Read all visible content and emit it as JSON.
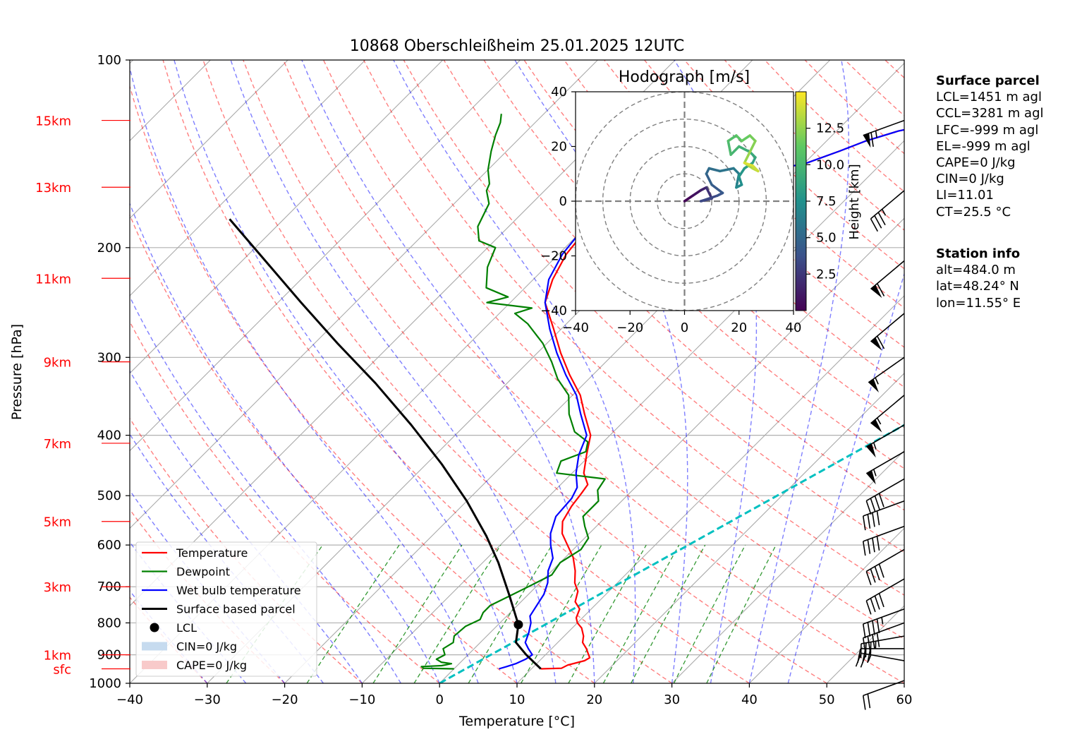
{
  "title": "10868 Oberschleißheim 25.01.2025 12UTC",
  "chart_data": {
    "type": "skew-t",
    "xlabel": "Temperature [°C]",
    "ylabel": "Pressure [hPa]",
    "xlim": [
      -40,
      60
    ],
    "ylim": [
      1000,
      100
    ],
    "x_ticks": [
      "−40",
      "−30",
      "−20",
      "−10",
      "0",
      "10",
      "20",
      "30",
      "40",
      "50",
      "60"
    ],
    "y_ticks": [
      "100",
      "200",
      "300",
      "400",
      "500",
      "600",
      "700",
      "800",
      "900",
      "1000"
    ],
    "height_labels": [
      {
        "label": "15km",
        "p": 125
      },
      {
        "label": "13km",
        "p": 160
      },
      {
        "label": "11km",
        "p": 224
      },
      {
        "label": "9km",
        "p": 305
      },
      {
        "label": "7km",
        "p": 412
      },
      {
        "label": "5km",
        "p": 550
      },
      {
        "label": "3km",
        "p": 700
      },
      {
        "label": "1km",
        "p": 900
      },
      {
        "label": "sfc",
        "p": 948
      }
    ],
    "legend": {
      "placement": "lower-left",
      "entries": [
        {
          "label": "Temperature",
          "color": "#ff0000",
          "kind": "line"
        },
        {
          "label": "Dewpoint",
          "color": "#008000",
          "kind": "line"
        },
        {
          "label": "Wet bulb temperature",
          "color": "#0000ff",
          "kind": "line"
        },
        {
          "label": "Surface based parcel",
          "color": "#000000",
          "kind": "line"
        },
        {
          "label": "LCL",
          "color": "#000000",
          "kind": "dot"
        },
        {
          "label": "CIN=0 J/kg",
          "color": "#c6dbef",
          "kind": "patch"
        },
        {
          "label": "CAPE=0 J/kg",
          "color": "#f8caca",
          "kind": "patch"
        }
      ]
    },
    "series": [
      {
        "name": "Temperature",
        "color": "#ff0000",
        "points": [
          [
            11.2,
            948
          ],
          [
            13.8,
            946
          ],
          [
            14.2,
            935
          ],
          [
            15.8,
            920
          ],
          [
            16.1,
            910
          ],
          [
            15.3,
            895
          ],
          [
            14.5,
            880
          ],
          [
            13.2,
            860
          ],
          [
            12.5,
            840
          ],
          [
            11.2,
            815
          ],
          [
            10.0,
            800
          ],
          [
            9.2,
            785
          ],
          [
            8.5,
            760
          ],
          [
            7.0,
            740
          ],
          [
            6.0,
            712
          ],
          [
            4.5,
            690
          ],
          [
            3.0,
            660
          ],
          [
            1.0,
            628
          ],
          [
            -1.5,
            598
          ],
          [
            -3.5,
            575
          ],
          [
            -5.0,
            550
          ],
          [
            -5.8,
            520
          ],
          [
            -6.2,
            495
          ],
          [
            -6.5,
            480
          ],
          [
            -8.5,
            460
          ],
          [
            -10.5,
            430
          ],
          [
            -12.5,
            400
          ],
          [
            -16.0,
            370
          ],
          [
            -19.0,
            345
          ],
          [
            -23.0,
            320
          ],
          [
            -27.0,
            295
          ],
          [
            -31.0,
            270
          ],
          [
            -35.5,
            245
          ],
          [
            -37.5,
            225
          ],
          [
            -39.0,
            205
          ],
          [
            -39.5,
            190
          ],
          [
            -39.0,
            182
          ],
          [
            -38.5,
            178
          ],
          [
            -36.0,
            172
          ],
          [
            -33.0,
            168
          ],
          [
            -30.5,
            160
          ],
          [
            -26.5,
            155
          ],
          [
            -24.0,
            150
          ],
          [
            -20.0,
            147
          ],
          [
            -17.0,
            140
          ],
          [
            -15.0,
            135
          ],
          [
            -12.0,
            130
          ],
          [
            -9.0,
            127
          ],
          [
            -7.0,
            124
          ],
          [
            -6.0,
            121
          ]
        ]
      },
      {
        "name": "Dewpoint",
        "color": "#008000",
        "points": [
          [
            0.0,
            948
          ],
          [
            -4.0,
            946
          ],
          [
            -4.5,
            940
          ],
          [
            -2.0,
            937
          ],
          [
            -1.0,
            930
          ],
          [
            -2.5,
            925
          ],
          [
            -3.5,
            915
          ],
          [
            -3.0,
            900
          ],
          [
            -4.0,
            880
          ],
          [
            -3.5,
            860
          ],
          [
            -4.2,
            840
          ],
          [
            -4.0,
            810
          ],
          [
            -3.0,
            790
          ],
          [
            -3.5,
            770
          ],
          [
            -3.5,
            750
          ],
          [
            -2.0,
            720
          ],
          [
            -1.0,
            700
          ],
          [
            0.5,
            670
          ],
          [
            0.0,
            640
          ],
          [
            1.0,
            610
          ],
          [
            0.5,
            585
          ],
          [
            -1.5,
            560
          ],
          [
            -3.0,
            540
          ],
          [
            -3.0,
            510
          ],
          [
            -4.5,
            490
          ],
          [
            -5.0,
            470
          ],
          [
            -12.0,
            460
          ],
          [
            -13.0,
            440
          ],
          [
            -11.0,
            425
          ],
          [
            -12.0,
            410
          ],
          [
            -15.0,
            395
          ],
          [
            -18.0,
            370
          ],
          [
            -20.5,
            345
          ],
          [
            -24.0,
            325
          ],
          [
            -27.0,
            305
          ],
          [
            -30.5,
            285
          ],
          [
            -35.0,
            265
          ],
          [
            -38.0,
            255
          ],
          [
            -36.5,
            250
          ],
          [
            -43.0,
            245
          ],
          [
            -41.0,
            240
          ],
          [
            -45.0,
            232
          ],
          [
            -46.0,
            225
          ],
          [
            -47.5,
            215
          ],
          [
            -49.0,
            200
          ],
          [
            -52.0,
            195
          ],
          [
            -54.0,
            185
          ],
          [
            -55.5,
            170
          ],
          [
            -57.5,
            162
          ],
          [
            -58.0,
            158
          ],
          [
            -60.0,
            150
          ],
          [
            -62.0,
            140
          ],
          [
            -63.5,
            132
          ],
          [
            -64.5,
            126
          ],
          [
            -65.5,
            122
          ]
        ]
      },
      {
        "name": "Wet bulb temperature",
        "color": "#0000ff",
        "points": [
          [
            5.8,
            948
          ],
          [
            6.5,
            940
          ],
          [
            7.3,
            930
          ],
          [
            8.0,
            915
          ],
          [
            8.3,
            900
          ],
          [
            7.0,
            880
          ],
          [
            5.8,
            860
          ],
          [
            5.0,
            830
          ],
          [
            4.0,
            800
          ],
          [
            3.0,
            780
          ],
          [
            2.5,
            750
          ],
          [
            2.0,
            720
          ],
          [
            1.0,
            690
          ],
          [
            -0.5,
            660
          ],
          [
            -1.5,
            630
          ],
          [
            -3.5,
            600
          ],
          [
            -5.0,
            575
          ],
          [
            -6.5,
            540
          ],
          [
            -6.8,
            505
          ],
          [
            -7.5,
            485
          ],
          [
            -9.5,
            460
          ],
          [
            -11.5,
            430
          ],
          [
            -13.0,
            400
          ],
          [
            -16.5,
            370
          ],
          [
            -19.5,
            345
          ],
          [
            -23.5,
            320
          ],
          [
            -27.5,
            295
          ],
          [
            -31.5,
            270
          ],
          [
            -35.5,
            245
          ],
          [
            -38.0,
            225
          ],
          [
            -39.5,
            205
          ],
          [
            -40.0,
            190
          ],
          [
            -39.5,
            182
          ],
          [
            -38.5,
            178
          ],
          [
            -36.0,
            172
          ],
          [
            -33.0,
            168
          ],
          [
            -30.5,
            160
          ],
          [
            -26.5,
            155
          ],
          [
            -24.0,
            150
          ],
          [
            -20.0,
            147
          ],
          [
            -17.0,
            140
          ],
          [
            -15.0,
            135
          ],
          [
            -12.0,
            130
          ],
          [
            -9.0,
            127
          ],
          [
            -7.0,
            124
          ],
          [
            -6.0,
            121
          ]
        ]
      },
      {
        "name": "Surface based parcel",
        "color": "#000000",
        "points": [
          [
            11.2,
            948
          ],
          [
            7.5,
            900
          ],
          [
            4.6,
            860
          ],
          [
            2.6,
            805
          ],
          [
            -2.5,
            720
          ],
          [
            -8.0,
            640
          ],
          [
            -13.0,
            580
          ],
          [
            -20.0,
            510
          ],
          [
            -28.0,
            445
          ],
          [
            -37.0,
            385
          ],
          [
            -47.0,
            330
          ],
          [
            -57.0,
            285
          ],
          [
            -67.0,
            245
          ],
          [
            -77.0,
            210
          ],
          [
            -87.0,
            180
          ]
        ]
      }
    ],
    "lcl": {
      "t": 2.6,
      "p": 805
    },
    "cyan_line": {
      "color": "#00c0c0",
      "points": [
        [
          0,
          1000
        ],
        [
          54,
          145
        ]
      ]
    },
    "wind_profile": {
      "color": "#000000",
      "barbs": [
        {
          "p": 990,
          "speed_kt": 20,
          "dir": 250
        },
        {
          "p": 920,
          "speed_kt": 25,
          "dir": 280
        },
        {
          "p": 880,
          "speed_kt": 30,
          "dir": 270
        },
        {
          "p": 840,
          "speed_kt": 35,
          "dir": 260
        },
        {
          "p": 800,
          "speed_kt": 40,
          "dir": 250
        },
        {
          "p": 760,
          "speed_kt": 45,
          "dir": 250
        },
        {
          "p": 680,
          "speed_kt": 40,
          "dir": 240
        },
        {
          "p": 610,
          "speed_kt": 40,
          "dir": 240
        },
        {
          "p": 560,
          "speed_kt": 40,
          "dir": 250
        },
        {
          "p": 510,
          "speed_kt": 40,
          "dir": 250
        },
        {
          "p": 470,
          "speed_kt": 40,
          "dir": 240
        },
        {
          "p": 425,
          "speed_kt": 55,
          "dir": 240
        },
        {
          "p": 385,
          "speed_kt": 55,
          "dir": 240
        },
        {
          "p": 345,
          "speed_kt": 55,
          "dir": 230
        },
        {
          "p": 300,
          "speed_kt": 55,
          "dir": 235
        },
        {
          "p": 255,
          "speed_kt": 60,
          "dir": 230
        },
        {
          "p": 210,
          "speed_kt": 60,
          "dir": 230
        },
        {
          "p": 162,
          "speed_kt": 35,
          "dir": 230
        },
        {
          "p": 125,
          "speed_kt": 65,
          "dir": 250
        }
      ]
    },
    "hodograph": {
      "title": "Hodograph [m/s]",
      "xlim": [
        -40,
        40
      ],
      "ylim": [
        -40,
        40
      ],
      "ticks": [
        "−40",
        "−20",
        "0",
        "20",
        "40"
      ],
      "rings": [
        10,
        20,
        30,
        40
      ],
      "colorbar": {
        "label": "Height [km]",
        "ticks": [
          "2.5",
          "5.0",
          "7.5",
          "10.0",
          "12.5"
        ],
        "range": [
          0,
          15
        ]
      },
      "points": [
        [
          0,
          0,
          0.2
        ],
        [
          3,
          2,
          0.8
        ],
        [
          6,
          4,
          1.5
        ],
        [
          8,
          5,
          2.2
        ],
        [
          10,
          1,
          2.8
        ],
        [
          6,
          0,
          3.3
        ],
        [
          12,
          2,
          3.8
        ],
        [
          14,
          3,
          4.2
        ],
        [
          10,
          6,
          4.6
        ],
        [
          8,
          10,
          5.0
        ],
        [
          9,
          12,
          5.4
        ],
        [
          13,
          11,
          5.8
        ],
        [
          18,
          12,
          6.2
        ],
        [
          20,
          10,
          6.6
        ],
        [
          19,
          5,
          7.0
        ],
        [
          21,
          6,
          7.4
        ],
        [
          20,
          9,
          7.8
        ],
        [
          22,
          12,
          8.2
        ],
        [
          25,
          14,
          8.6
        ],
        [
          26,
          16,
          9.0
        ],
        [
          24,
          18,
          9.4
        ],
        [
          20,
          20,
          9.8
        ],
        [
          17,
          17,
          10.2
        ],
        [
          16,
          22,
          10.6
        ],
        [
          19,
          24,
          11.0
        ],
        [
          21,
          22,
          11.4
        ],
        [
          24,
          24,
          11.8
        ],
        [
          26,
          22,
          12.2
        ],
        [
          24,
          18,
          12.6
        ],
        [
          22,
          14,
          13.0
        ],
        [
          25,
          12,
          13.4
        ],
        [
          27,
          11,
          13.8
        ],
        [
          25,
          13,
          14.2
        ],
        [
          22,
          14,
          14.6
        ]
      ]
    }
  },
  "surface_parcel": {
    "header": "Surface parcel",
    "lines": [
      "LCL=1451 m agl",
      "CCL=3281 m agl",
      "LFC=-999 m agl",
      "EL=-999 m agl",
      "CAPE=0 J/kg",
      "CIN=0 J/kg",
      "LI=11.01",
      "CT=25.5 °C"
    ]
  },
  "station_info": {
    "header": "Station info",
    "lines": [
      "alt=484.0 m",
      "lat=48.24° N",
      "lon=11.55° E"
    ]
  }
}
